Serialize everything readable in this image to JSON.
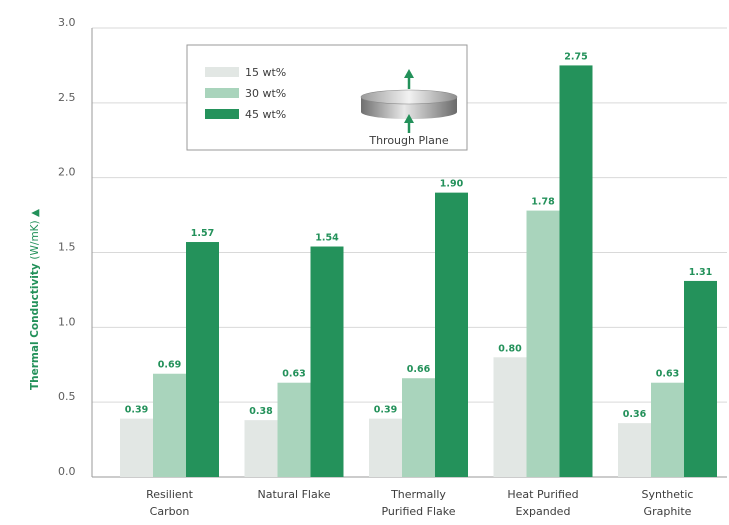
{
  "chart_data": {
    "type": "bar",
    "categories": [
      [
        "Resilient",
        "Carbon"
      ],
      [
        "Natural Flake"
      ],
      [
        "Thermally",
        "Purified Flake"
      ],
      [
        "Heat Purified",
        "Expanded"
      ],
      [
        "Synthetic",
        "Graphite"
      ]
    ],
    "series": [
      {
        "name": "15 wt%",
        "values": [
          0.39,
          0.38,
          0.39,
          0.8,
          0.36
        ],
        "value_labels": [
          "0.39",
          "0.38",
          "0.39",
          "0.80",
          "0.36"
        ],
        "color": "#e2e7e4"
      },
      {
        "name": "30 wt%",
        "values": [
          0.69,
          0.63,
          0.66,
          1.78,
          0.63
        ],
        "value_labels": [
          "0.69",
          "0.63",
          "0.66",
          "1.78",
          "0.63"
        ],
        "color": "#a9d4bc"
      },
      {
        "name": "45 wt%",
        "values": [
          1.57,
          1.54,
          1.9,
          2.75,
          1.31
        ],
        "value_labels": [
          "1.57",
          "1.54",
          "1.90",
          "2.75",
          "1.31"
        ],
        "color": "#24925b"
      }
    ],
    "ylabel": "Thermal Conductivity",
    "ylabel_unit": "(W/mK)",
    "ylabel_marker": "▲",
    "ylim": [
      0,
      3.0
    ],
    "yticks": [
      "0.0",
      "0.5",
      "1.0",
      "1.5",
      "2.0",
      "2.5",
      "3.0"
    ],
    "grid": true,
    "legend_position": "top-left inset",
    "inset_label": "Through Plane",
    "colors": {
      "accent": "#24925b",
      "gridline": "#d9d9d9",
      "axis": "#9a9a9a"
    }
  }
}
